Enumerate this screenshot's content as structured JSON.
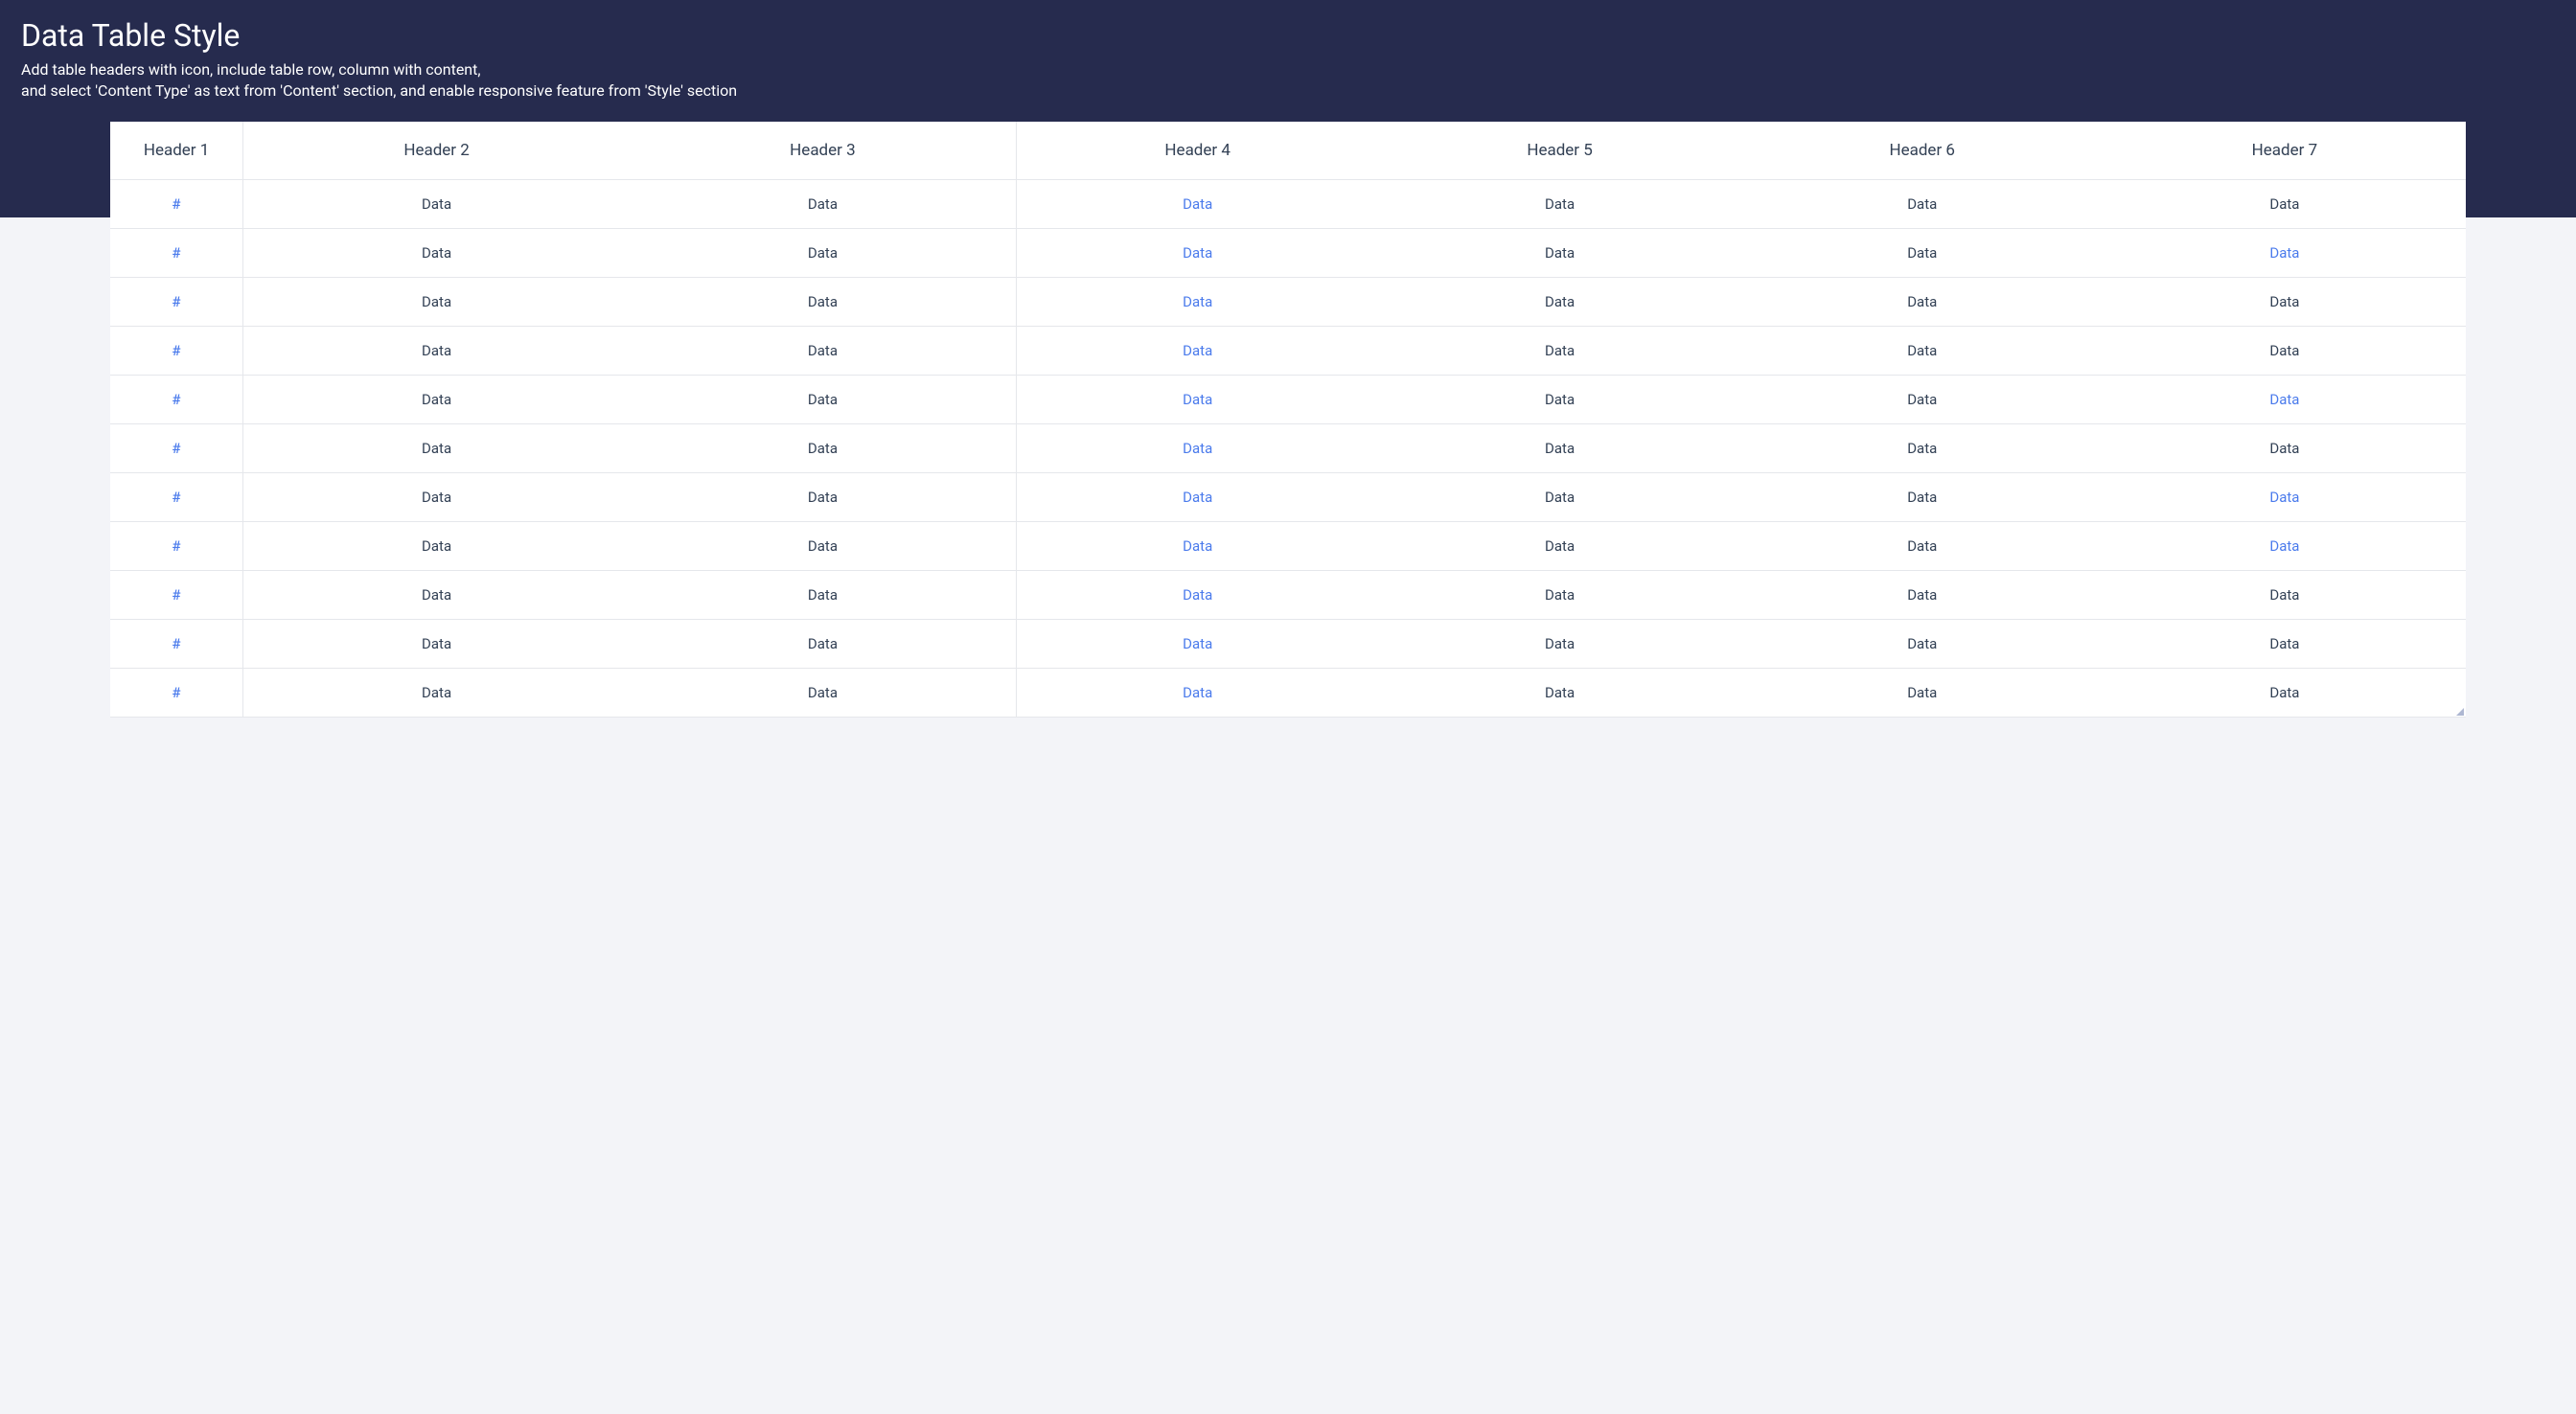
{
  "hero": {
    "title": "Data Table Style",
    "subtitle_line1": "Add table headers with icon, include table row, column with content,",
    "subtitle_line2": "and select 'Content Type' as text from 'Content' section, and enable responsive feature from 'Style' section",
    "background_color": "#262b4e",
    "title_color": "#ffffff",
    "title_fontsize": 32,
    "subtitle_color": "#ffffff",
    "subtitle_fontsize": 16
  },
  "page": {
    "background_color": "#f3f4f8"
  },
  "table": {
    "background_color": "#ffffff",
    "border_color": "#e5e7eb",
    "text_color": "#334155",
    "link_color": "#4b7bec",
    "header_fontsize": 17,
    "cell_fontsize": 15,
    "column_separators_after": [
      1,
      3
    ],
    "columns": [
      {
        "label": "Header 1",
        "width_pct": 5.5
      },
      {
        "label": "Header 2",
        "width_pct": 16
      },
      {
        "label": "Header 3",
        "width_pct": 16
      },
      {
        "label": "Header 4",
        "width_pct": 15
      },
      {
        "label": "Header 5",
        "width_pct": 15
      },
      {
        "label": "Header 6",
        "width_pct": 15
      },
      {
        "label": "Header 7",
        "width_pct": 15
      }
    ],
    "rows": [
      [
        {
          "v": "#",
          "link": true
        },
        {
          "v": "Data"
        },
        {
          "v": "Data"
        },
        {
          "v": "Data",
          "link": true
        },
        {
          "v": "Data"
        },
        {
          "v": "Data"
        },
        {
          "v": "Data"
        }
      ],
      [
        {
          "v": "#",
          "link": true
        },
        {
          "v": "Data"
        },
        {
          "v": "Data"
        },
        {
          "v": "Data",
          "link": true
        },
        {
          "v": "Data"
        },
        {
          "v": "Data"
        },
        {
          "v": "Data",
          "link": true
        }
      ],
      [
        {
          "v": "#",
          "link": true
        },
        {
          "v": "Data"
        },
        {
          "v": "Data"
        },
        {
          "v": "Data",
          "link": true
        },
        {
          "v": "Data"
        },
        {
          "v": "Data"
        },
        {
          "v": "Data"
        }
      ],
      [
        {
          "v": "#",
          "link": true
        },
        {
          "v": "Data"
        },
        {
          "v": "Data"
        },
        {
          "v": "Data",
          "link": true
        },
        {
          "v": "Data"
        },
        {
          "v": "Data"
        },
        {
          "v": "Data"
        }
      ],
      [
        {
          "v": "#",
          "link": true
        },
        {
          "v": "Data"
        },
        {
          "v": "Data"
        },
        {
          "v": "Data",
          "link": true
        },
        {
          "v": "Data"
        },
        {
          "v": "Data"
        },
        {
          "v": "Data",
          "link": true
        }
      ],
      [
        {
          "v": "#",
          "link": true
        },
        {
          "v": "Data"
        },
        {
          "v": "Data"
        },
        {
          "v": "Data",
          "link": true
        },
        {
          "v": "Data"
        },
        {
          "v": "Data"
        },
        {
          "v": "Data"
        }
      ],
      [
        {
          "v": "#",
          "link": true
        },
        {
          "v": "Data"
        },
        {
          "v": "Data"
        },
        {
          "v": "Data",
          "link": true
        },
        {
          "v": "Data"
        },
        {
          "v": "Data"
        },
        {
          "v": "Data",
          "link": true
        }
      ],
      [
        {
          "v": "#",
          "link": true
        },
        {
          "v": "Data"
        },
        {
          "v": "Data"
        },
        {
          "v": "Data",
          "link": true
        },
        {
          "v": "Data"
        },
        {
          "v": "Data"
        },
        {
          "v": "Data",
          "link": true
        }
      ],
      [
        {
          "v": "#",
          "link": true
        },
        {
          "v": "Data"
        },
        {
          "v": "Data"
        },
        {
          "v": "Data",
          "link": true
        },
        {
          "v": "Data"
        },
        {
          "v": "Data"
        },
        {
          "v": "Data"
        }
      ],
      [
        {
          "v": "#",
          "link": true
        },
        {
          "v": "Data"
        },
        {
          "v": "Data"
        },
        {
          "v": "Data",
          "link": true
        },
        {
          "v": "Data"
        },
        {
          "v": "Data"
        },
        {
          "v": "Data"
        }
      ],
      [
        {
          "v": "#",
          "link": true
        },
        {
          "v": "Data"
        },
        {
          "v": "Data"
        },
        {
          "v": "Data",
          "link": true
        },
        {
          "v": "Data"
        },
        {
          "v": "Data"
        },
        {
          "v": "Data"
        }
      ]
    ]
  }
}
